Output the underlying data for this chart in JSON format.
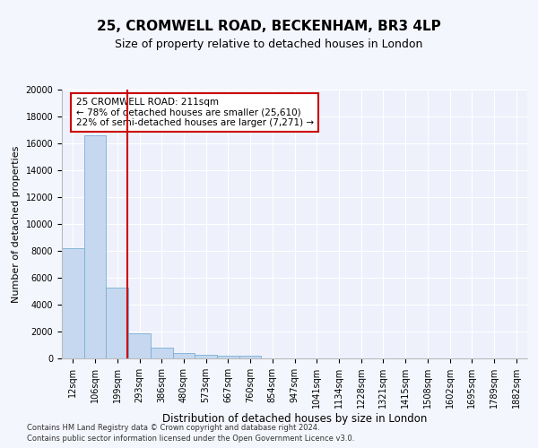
{
  "title1": "25, CROMWELL ROAD, BECKENHAM, BR3 4LP",
  "title2": "Size of property relative to detached houses in London",
  "xlabel": "Distribution of detached houses by size in London",
  "ylabel": "Number of detached properties",
  "categories": [
    "12sqm",
    "106sqm",
    "199sqm",
    "293sqm",
    "386sqm",
    "480sqm",
    "573sqm",
    "667sqm",
    "760sqm",
    "854sqm",
    "947sqm",
    "1041sqm",
    "1134sqm",
    "1228sqm",
    "1321sqm",
    "1415sqm",
    "1508sqm",
    "1602sqm",
    "1695sqm",
    "1789sqm",
    "1882sqm"
  ],
  "values": [
    8200,
    16600,
    5300,
    1850,
    780,
    370,
    290,
    220,
    190,
    0,
    0,
    0,
    0,
    0,
    0,
    0,
    0,
    0,
    0,
    0,
    0
  ],
  "bar_color": "#c5d8f0",
  "bar_edge_color": "#7aafd4",
  "vline_color": "#cc0000",
  "vline_x_index": 2.45,
  "annotation_text": "25 CROMWELL ROAD: 211sqm\n← 78% of detached houses are smaller (25,610)\n22% of semi-detached houses are larger (7,271) →",
  "annotation_box_color": "#ffffff",
  "annotation_box_edge": "#cc0000",
  "ylim": [
    0,
    20000
  ],
  "yticks": [
    0,
    2000,
    4000,
    6000,
    8000,
    10000,
    12000,
    14000,
    16000,
    18000,
    20000
  ],
  "footnote1": "Contains HM Land Registry data © Crown copyright and database right 2024.",
  "footnote2": "Contains public sector information licensed under the Open Government Licence v3.0.",
  "bg_color": "#f4f6fd",
  "plot_bg_color": "#eef1fb",
  "grid_color": "#ffffff",
  "title1_fontsize": 11,
  "title2_fontsize": 9,
  "tick_fontsize": 7,
  "ylabel_fontsize": 8,
  "xlabel_fontsize": 8.5,
  "annotation_fontsize": 7.5,
  "footnote_fontsize": 6
}
